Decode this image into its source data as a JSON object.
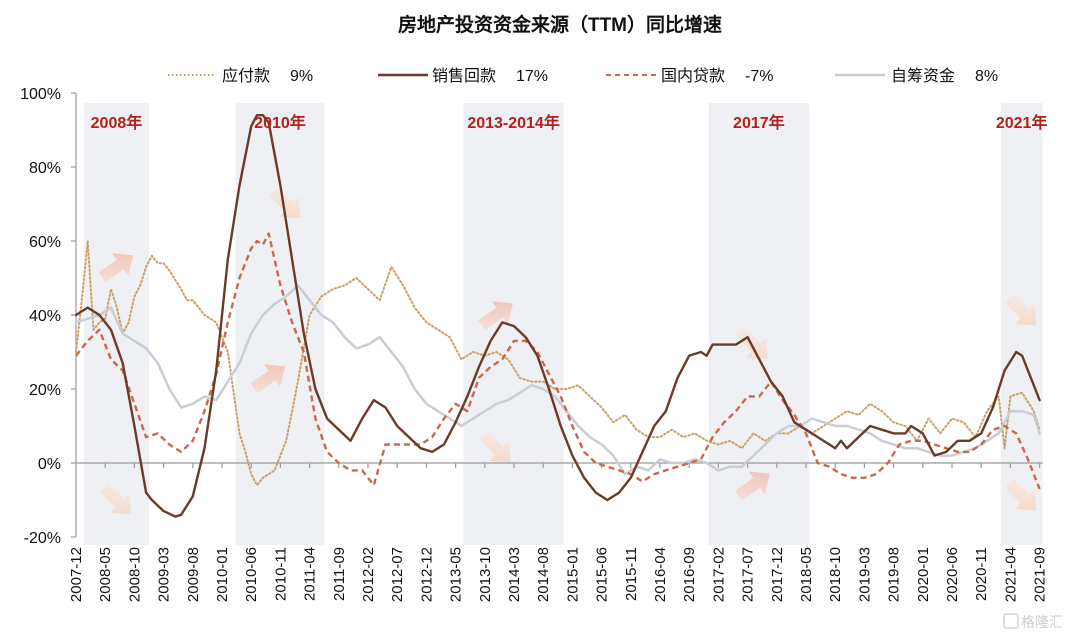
{
  "chart_data": {
    "type": "line",
    "title": "房地产投资资金来源（TTM）同比增速",
    "xlabel": "",
    "ylabel": "",
    "ylim": [
      -20,
      100
    ],
    "y_ticks": [
      "100%",
      "80%",
      "60%",
      "40%",
      "20%",
      "0%",
      "-20%"
    ],
    "y_tick_values": [
      100,
      80,
      60,
      40,
      20,
      0,
      -20
    ],
    "x_start": "2007-12",
    "x_unit": "month index from 2007-12",
    "x_ticks": [
      "2007-12",
      "2008-05",
      "2008-10",
      "2009-03",
      "2009-08",
      "2010-01",
      "2010-06",
      "2010-11",
      "2011-04",
      "2011-09",
      "2012-02",
      "2012-07",
      "2012-12",
      "2013-05",
      "2013-10",
      "2014-03",
      "2014-08",
      "2015-01",
      "2015-06",
      "2015-11",
      "2016-04",
      "2016-09",
      "2017-02",
      "2017-07",
      "2017-12",
      "2018-05",
      "2018-10",
      "2019-03",
      "2019-08",
      "2020-01",
      "2020-06",
      "2020-11",
      "2021-04",
      "2021-09"
    ],
    "grid": false,
    "legend_position": "top",
    "legend": [
      {
        "name": "应付款",
        "latest": "9%",
        "style": "dotted",
        "color": "#c9a06a"
      },
      {
        "name": "销售回款",
        "latest": "17%",
        "style": "solid",
        "color": "#6b3a2a"
      },
      {
        "name": "国内贷款",
        "latest": "-7%",
        "style": "dashed",
        "color": "#c8694e"
      },
      {
        "name": "自筹资金",
        "latest": "8%",
        "style": "solid",
        "color": "#c9cdd6"
      }
    ],
    "shaded_periods": [
      {
        "label": "2008年",
        "start": 1,
        "end": 12
      },
      {
        "label": "2010年",
        "start": 27,
        "end": 42
      },
      {
        "label": "2013-2014年",
        "start": 66,
        "end": 83
      },
      {
        "label": "2017年",
        "start": 108,
        "end": 125
      },
      {
        "label": "2021年",
        "start": 158,
        "end": 165
      }
    ],
    "arrows": [
      {
        "period": "2008年",
        "direction": "up",
        "at": [
          7,
          53
        ]
      },
      {
        "period": "2008年",
        "direction": "down",
        "at": [
          7,
          -10
        ]
      },
      {
        "period": "2010年",
        "direction": "down",
        "at": [
          36,
          70
        ]
      },
      {
        "period": "2010年",
        "direction": "up",
        "at": [
          33,
          23
        ]
      },
      {
        "period": "2013-2014年",
        "direction": "up",
        "at": [
          72,
          40
        ]
      },
      {
        "period": "2013-2014年",
        "direction": "down",
        "at": [
          72,
          4
        ]
      },
      {
        "period": "2017年",
        "direction": "down",
        "at": [
          116,
          32
        ]
      },
      {
        "period": "2017年",
        "direction": "up",
        "at": [
          116,
          -6
        ]
      },
      {
        "period": "2021年",
        "direction": "down",
        "at": [
          162,
          41
        ]
      },
      {
        "period": "2021年",
        "direction": "down",
        "at": [
          162,
          -9
        ]
      }
    ],
    "series": [
      {
        "name": "应付款",
        "x": [
          0,
          1,
          2,
          3,
          4,
          5,
          6,
          7,
          8,
          9,
          10,
          11,
          12,
          13,
          14,
          15,
          16,
          18,
          19,
          20,
          22,
          24,
          26,
          28,
          29,
          30,
          31,
          32,
          33,
          34,
          35,
          36,
          37,
          38,
          40,
          42,
          44,
          46,
          48,
          50,
          52,
          54,
          56,
          58,
          60,
          62,
          64,
          66,
          68,
          70,
          72,
          74,
          76,
          78,
          80,
          82,
          84,
          86,
          88,
          90,
          92,
          94,
          96,
          98,
          100,
          102,
          104,
          106,
          108,
          110,
          112,
          114,
          116,
          118,
          120,
          122,
          124,
          126,
          128,
          130,
          132,
          134,
          136,
          138,
          140,
          142,
          144,
          146,
          148,
          150,
          152,
          154,
          156,
          158,
          159,
          160,
          162,
          164,
          165
        ],
        "values": [
          30,
          44,
          60,
          36,
          38,
          39,
          47,
          42,
          35,
          38,
          45,
          48,
          53,
          56,
          54,
          54,
          52,
          47,
          44,
          44,
          40,
          38,
          30,
          8,
          3,
          -3,
          -6,
          -4,
          -3,
          -2,
          2,
          6,
          14,
          22,
          40,
          45,
          47,
          48,
          50,
          47,
          44,
          53,
          48,
          42,
          38,
          36,
          34,
          28,
          30,
          29,
          30,
          28,
          23,
          22,
          22,
          20,
          20,
          21,
          18,
          15,
          11,
          13,
          9,
          7,
          7,
          9,
          7,
          8,
          6,
          5,
          6,
          4,
          8,
          6,
          8,
          8,
          10,
          8,
          10,
          12,
          14,
          13,
          16,
          14,
          11,
          10,
          6,
          12,
          8,
          12,
          11,
          7,
          14,
          18,
          4,
          18,
          19,
          14,
          9
        ]
      },
      {
        "name": "销售回款",
        "x": [
          0,
          2,
          4,
          6,
          8,
          10,
          12,
          13,
          15,
          17,
          18,
          20,
          22,
          24,
          26,
          28,
          30,
          31,
          32,
          33,
          35,
          37,
          39,
          41,
          43,
          45,
          47,
          49,
          51,
          53,
          55,
          57,
          59,
          61,
          63,
          65,
          67,
          69,
          71,
          73,
          75,
          77,
          79,
          81,
          83,
          85,
          87,
          89,
          91,
          93,
          95,
          97,
          99,
          101,
          103,
          105,
          107,
          108,
          109,
          111,
          113,
          115,
          117,
          119,
          121,
          123,
          125,
          127,
          129,
          130,
          131,
          132,
          134,
          136,
          138,
          140,
          142,
          143,
          145,
          147,
          149,
          151,
          153,
          155,
          157,
          159,
          161,
          162,
          164,
          165
        ],
        "values": [
          40,
          42,
          40,
          36,
          27,
          10,
          -8,
          -10,
          -13,
          -14.5,
          -14,
          -9,
          4,
          25,
          55,
          75,
          91,
          94,
          94,
          92,
          75,
          55,
          35,
          20,
          12,
          9,
          6,
          12,
          17,
          15,
          10,
          7,
          4,
          3,
          5,
          11,
          18,
          26,
          33,
          38,
          37,
          34,
          29,
          20,
          10,
          2,
          -4,
          -8,
          -10,
          -8,
          -4,
          3,
          10,
          14,
          23,
          29,
          30,
          29,
          32,
          32,
          32,
          34,
          28,
          22,
          18,
          11,
          9,
          7,
          5,
          4,
          6,
          4,
          7,
          10,
          9,
          8,
          8,
          10,
          8,
          2,
          3,
          6,
          6,
          8,
          15,
          25,
          30,
          29,
          21,
          17
        ]
      },
      {
        "name": "国内贷款",
        "x": [
          0,
          2,
          4,
          6,
          8,
          10,
          12,
          14,
          16,
          18,
          20,
          22,
          24,
          26,
          28,
          30,
          31,
          32,
          33,
          35,
          37,
          39,
          41,
          43,
          45,
          47,
          49,
          51,
          53,
          55,
          57,
          59,
          61,
          63,
          65,
          67,
          69,
          71,
          73,
          75,
          77,
          79,
          81,
          83,
          85,
          87,
          89,
          91,
          93,
          95,
          97,
          99,
          101,
          103,
          105,
          107,
          109,
          111,
          113,
          115,
          117,
          119,
          121,
          123,
          125,
          127,
          129,
          131,
          133,
          135,
          137,
          139,
          141,
          143,
          145,
          147,
          149,
          151,
          153,
          155,
          157,
          159,
          161,
          163,
          165
        ],
        "values": [
          29,
          33,
          36,
          28,
          25,
          16,
          7,
          8,
          5,
          3,
          6,
          14,
          24,
          38,
          50,
          58,
          60,
          59,
          62,
          48,
          38,
          30,
          12,
          3,
          0,
          -2,
          -2,
          -6,
          5,
          5,
          5,
          5,
          7,
          12,
          16,
          14,
          23,
          26,
          28,
          33,
          33,
          30,
          24,
          18,
          10,
          3,
          0,
          -1,
          -2,
          -3,
          -5,
          -3,
          -2,
          -1,
          0,
          1,
          7,
          11,
          14,
          18,
          18,
          22,
          17,
          13,
          8,
          0,
          -1,
          -3,
          -4,
          -4,
          -3,
          0,
          5,
          6,
          6,
          5,
          4,
          3,
          3,
          5,
          9,
          10,
          8,
          1,
          -7
        ]
      },
      {
        "name": "自筹资金",
        "x": [
          0,
          2,
          4,
          6,
          8,
          10,
          12,
          14,
          16,
          18,
          20,
          22,
          24,
          26,
          28,
          30,
          32,
          34,
          36,
          38,
          40,
          42,
          44,
          46,
          48,
          50,
          52,
          54,
          56,
          58,
          60,
          62,
          64,
          66,
          68,
          70,
          72,
          74,
          76,
          78,
          80,
          82,
          84,
          86,
          88,
          90,
          92,
          94,
          96,
          98,
          100,
          102,
          104,
          106,
          108,
          110,
          112,
          114,
          116,
          118,
          120,
          122,
          124,
          126,
          128,
          130,
          132,
          134,
          136,
          138,
          140,
          142,
          144,
          146,
          148,
          150,
          152,
          154,
          156,
          158,
          160,
          162,
          164,
          165
        ],
        "values": [
          38,
          39,
          40,
          42,
          35,
          33,
          31,
          27,
          20,
          15,
          16,
          18,
          17,
          22,
          27,
          35,
          40,
          43,
          45,
          48,
          44,
          40,
          38,
          34,
          31,
          32,
          34,
          30,
          26,
          20,
          16,
          14,
          12,
          10,
          12,
          14,
          16,
          17,
          19,
          21,
          20,
          18,
          14,
          10,
          7,
          5,
          2,
          -3,
          -1,
          -2,
          1,
          0,
          0,
          1,
          0,
          -2,
          -1,
          -1,
          2,
          5,
          8,
          10,
          10,
          12,
          11,
          10,
          10,
          9,
          8,
          6,
          5,
          4,
          4,
          3,
          2,
          2,
          3,
          4,
          6,
          8,
          14,
          14,
          13,
          8
        ]
      }
    ]
  },
  "watermark": "格隆汇"
}
